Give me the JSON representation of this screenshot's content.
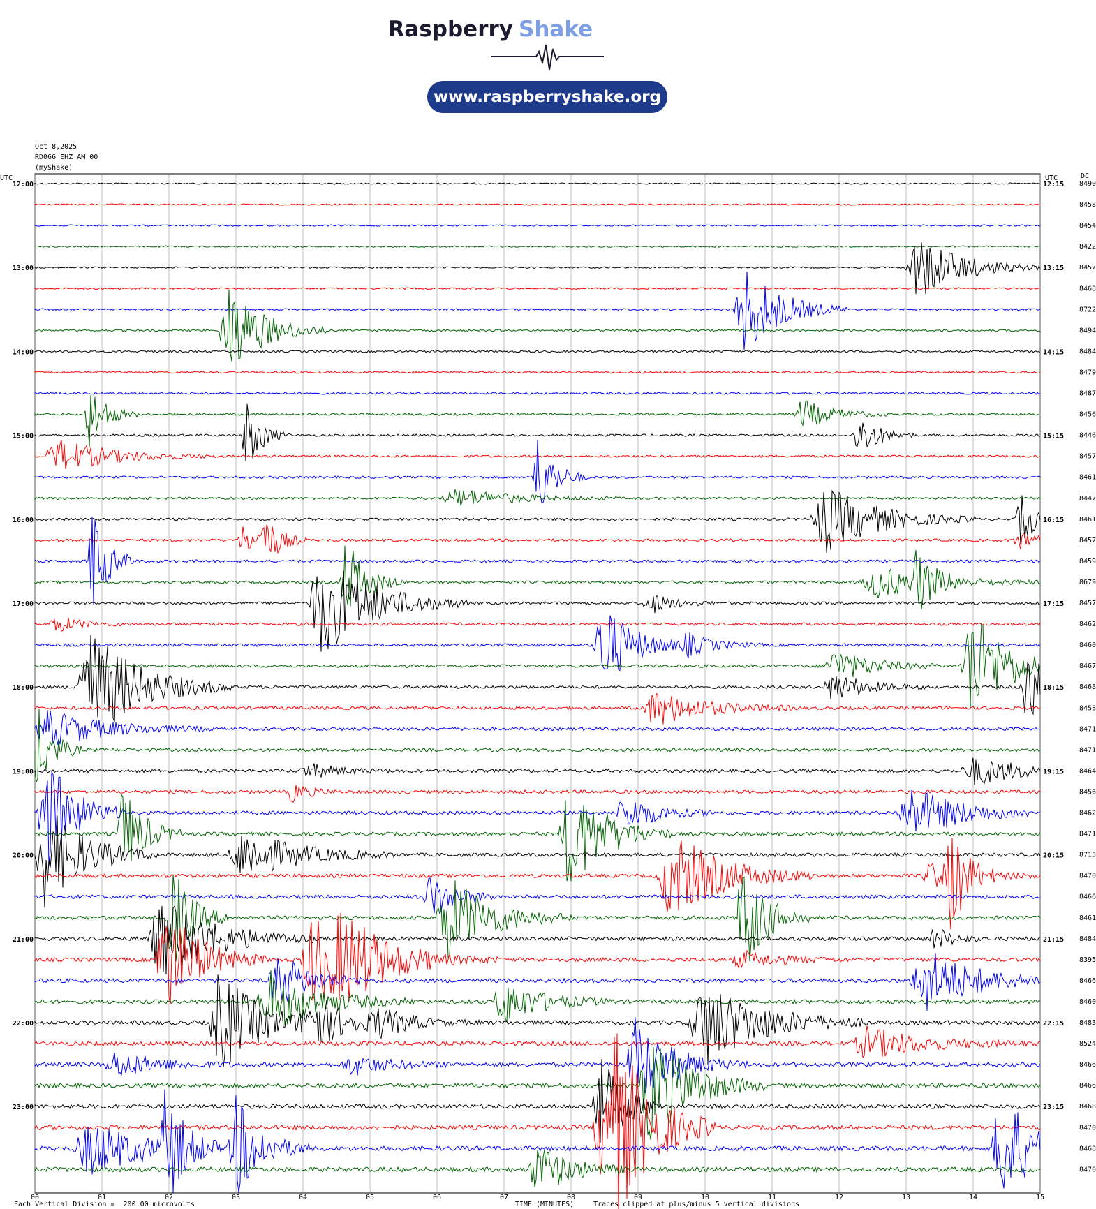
{
  "logo": {
    "brand": "Raspberry",
    "product": "Shake",
    "url": "www.raspberryshake.org"
  },
  "header": {
    "date": "Oct 8,2025",
    "station": "RD066 EHZ AM 00",
    "source": "(myShake)",
    "utc_left": "UTC",
    "utc_right": "UTC",
    "dc": "DC"
  },
  "left_times": [
    "12:00",
    "13:00",
    "14:00",
    "15:00",
    "16:00",
    "17:00",
    "18:00",
    "19:00",
    "20:00",
    "21:00",
    "22:00",
    "23:00"
  ],
  "right_times": [
    "12:15",
    "13:15",
    "14:15",
    "15:15",
    "16:15",
    "17:15",
    "18:15",
    "19:15",
    "20:15",
    "21:15",
    "22:15",
    "23:15"
  ],
  "minutes": [
    "00",
    "01",
    "02",
    "03",
    "04",
    "05",
    "06",
    "07",
    "08",
    "09",
    "10",
    "11",
    "12",
    "13",
    "14",
    "15"
  ],
  "dc_values": [
    8490,
    8458,
    8454,
    8422,
    8457,
    8468,
    8722,
    8494,
    8484,
    8479,
    8487,
    8456,
    8446,
    8457,
    8461,
    8447,
    8461,
    8457,
    8459,
    8679,
    8457,
    8462,
    8460,
    8467,
    8468,
    8458,
    8471,
    8471,
    8464,
    8456,
    8462,
    8471,
    8713,
    8470,
    8466,
    8461,
    8484,
    8395,
    8466,
    8460,
    8483,
    8524,
    8466,
    8466,
    8468,
    8470,
    8468,
    8470
  ],
  "colors": [
    "#000000",
    "#ff0000",
    "#0000ff",
    "#006400"
  ],
  "footer": {
    "scale": "Each Vertical Division =  200.00 microvolts",
    "x_label": "TIME (MINUTES)",
    "clip_note": "Traces clipped at plus/minus 5 vertical divisions"
  }
}
